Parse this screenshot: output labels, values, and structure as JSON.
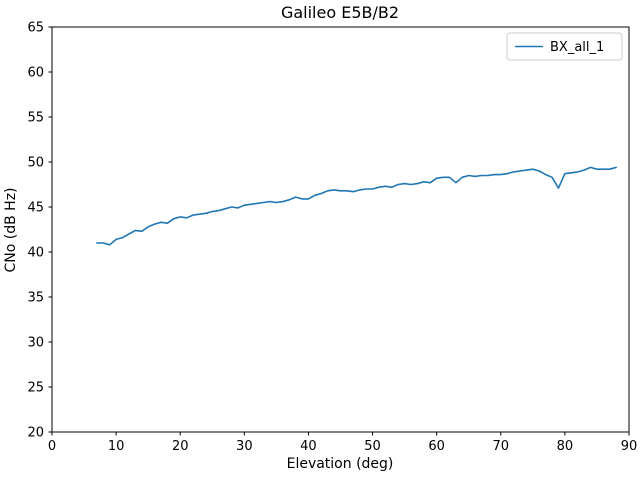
{
  "chart_data": {
    "type": "line",
    "title": "Galileo E5B/B2",
    "xlabel": "Elevation (deg)",
    "ylabel": "CNo (dB Hz)",
    "xlim": [
      0,
      90
    ],
    "ylim": [
      20,
      65
    ],
    "xticks": [
      0,
      10,
      20,
      30,
      40,
      50,
      60,
      70,
      80,
      90
    ],
    "yticks": [
      20,
      25,
      30,
      35,
      40,
      45,
      50,
      55,
      60,
      65
    ],
    "grid": false,
    "legend_position": "upper right",
    "x": [
      7,
      8,
      9,
      10,
      11,
      12,
      13,
      14,
      15,
      16,
      17,
      18,
      19,
      20,
      21,
      22,
      23,
      24,
      25,
      26,
      27,
      28,
      29,
      30,
      31,
      32,
      33,
      34,
      35,
      36,
      37,
      38,
      39,
      40,
      41,
      42,
      43,
      44,
      45,
      46,
      47,
      48,
      49,
      50,
      51,
      52,
      53,
      54,
      55,
      56,
      57,
      58,
      59,
      60,
      61,
      62,
      63,
      64,
      65,
      66,
      67,
      68,
      69,
      70,
      71,
      72,
      73,
      74,
      75,
      76,
      77,
      78,
      79,
      80,
      81,
      82,
      83,
      84,
      85,
      86,
      87,
      88
    ],
    "series": [
      {
        "name": "BX_all_1",
        "color": "#1f77b4",
        "values": [
          41.0,
          41.0,
          40.8,
          41.4,
          41.6,
          42.0,
          42.4,
          42.3,
          42.8,
          43.1,
          43.3,
          43.2,
          43.7,
          43.9,
          43.8,
          44.1,
          44.2,
          44.3,
          44.5,
          44.6,
          44.8,
          45.0,
          44.9,
          45.2,
          45.3,
          45.4,
          45.5,
          45.6,
          45.5,
          45.6,
          45.8,
          46.1,
          45.9,
          45.9,
          46.3,
          46.5,
          46.8,
          46.9,
          46.8,
          46.8,
          46.7,
          46.9,
          47.0,
          47.0,
          47.2,
          47.3,
          47.2,
          47.5,
          47.6,
          47.5,
          47.6,
          47.8,
          47.7,
          48.2,
          48.3,
          48.3,
          47.7,
          48.3,
          48.5,
          48.4,
          48.5,
          48.5,
          48.6,
          48.6,
          48.7,
          48.9,
          49.0,
          49.1,
          49.2,
          49.0,
          48.6,
          48.3,
          47.1,
          48.7,
          48.8,
          48.9,
          49.1,
          49.4,
          49.2,
          49.2,
          49.2,
          49.4
        ]
      }
    ],
    "frame_color": "#000000",
    "background_color": "#ffffff",
    "legend_border_color": "#cccccc"
  }
}
